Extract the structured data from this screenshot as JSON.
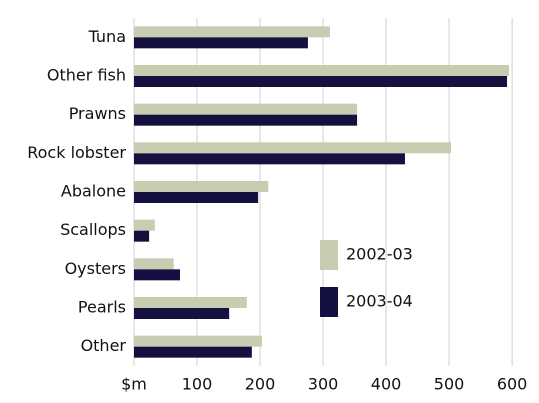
{
  "chart_data": {
    "type": "hbar",
    "categories": [
      "Tuna",
      "Other fish",
      "Prawns",
      "Rock lobster",
      "Abalone",
      "Scallops",
      "Oysters",
      "Pearls",
      "Other"
    ],
    "series": [
      {
        "name": "2002-03",
        "color": "#c8ccb0",
        "values": [
          311,
          595,
          354,
          503,
          213,
          33,
          63,
          179,
          203
        ]
      },
      {
        "name": "2003-04",
        "color": "#14103f",
        "values": [
          276,
          592,
          354,
          430,
          197,
          24,
          73,
          151,
          187
        ]
      }
    ],
    "xlim": [
      0,
      630
    ],
    "xticks": [
      {
        "value": 0,
        "label": "$m"
      },
      100,
      200,
      300,
      400,
      500,
      600
    ],
    "grid": true,
    "legend": "lower right"
  }
}
